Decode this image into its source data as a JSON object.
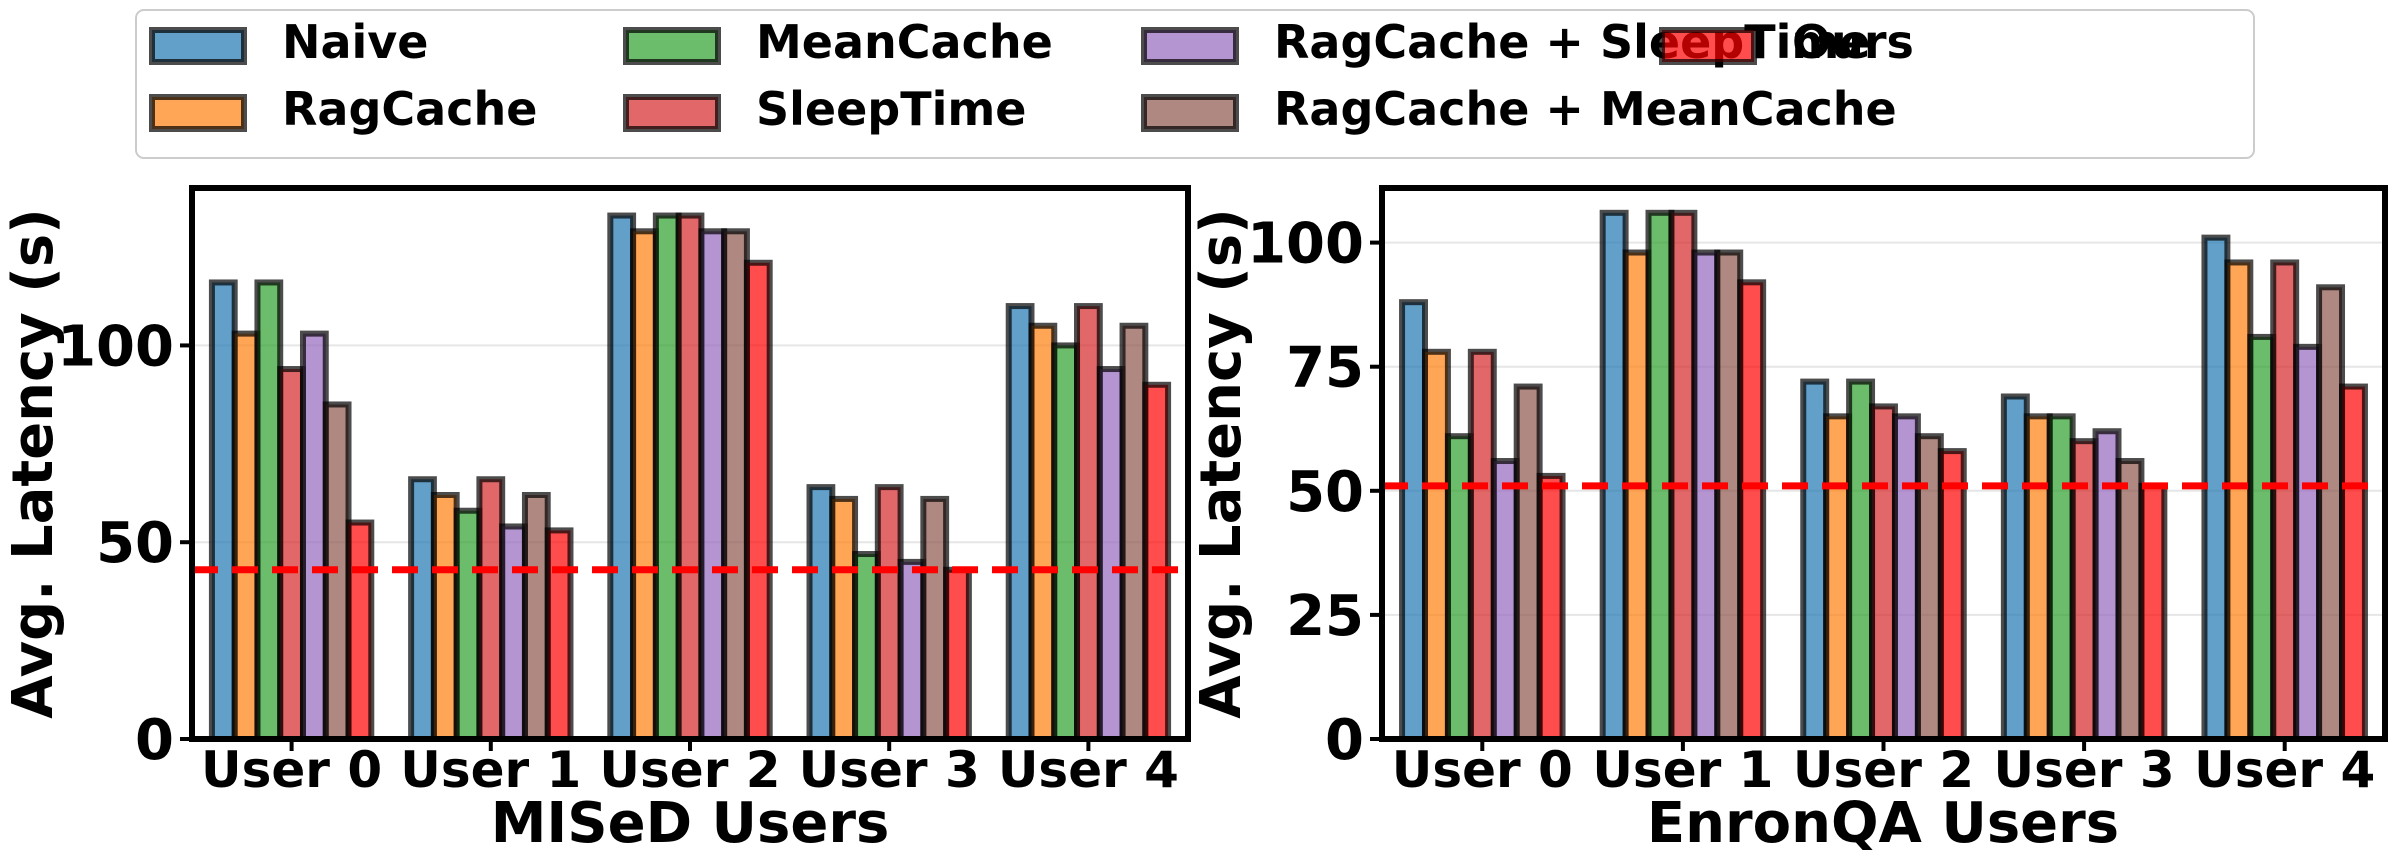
{
  "legend": {
    "entries": [
      {
        "label": "Naive",
        "color": "#1f77b4"
      },
      {
        "label": "RagCache",
        "color": "#ff7f0e"
      },
      {
        "label": "MeanCache",
        "color": "#2ca02c"
      },
      {
        "label": "SleepTime",
        "color": "#d62728"
      },
      {
        "label": "RagCache + SleepTime",
        "color": "#9467bd"
      },
      {
        "label": "RagCache + MeanCache",
        "color": "#8c564b"
      },
      {
        "label": "Ours",
        "color": "#ff0000"
      }
    ],
    "placement": "top-center"
  },
  "chart_data": [
    {
      "type": "bar",
      "title": "",
      "xlabel": "MISeD Users",
      "ylabel": "Avg. Latency (s)",
      "ylim": [
        0,
        140
      ],
      "yticks": [
        0,
        50,
        100
      ],
      "categories": [
        "User 0",
        "User 1",
        "User 2",
        "User 3",
        "User 4"
      ],
      "reference_line": {
        "value": 43,
        "color": "#ff0000",
        "style": "dashed"
      },
      "series": [
        {
          "name": "Naive",
          "values": [
            116,
            66,
            133,
            64,
            110
          ]
        },
        {
          "name": "RagCache",
          "values": [
            103,
            62,
            129,
            61,
            105
          ]
        },
        {
          "name": "MeanCache",
          "values": [
            116,
            58,
            133,
            47,
            100
          ]
        },
        {
          "name": "SleepTime",
          "values": [
            94,
            66,
            133,
            64,
            110
          ]
        },
        {
          "name": "RagCache + SleepTime",
          "values": [
            103,
            54,
            129,
            45,
            94
          ]
        },
        {
          "name": "RagCache + MeanCache",
          "values": [
            85,
            62,
            129,
            61,
            105
          ]
        },
        {
          "name": "Ours",
          "values": [
            55,
            53,
            121,
            43,
            90
          ]
        }
      ]
    },
    {
      "type": "bar",
      "title": "",
      "xlabel": "EnronQA Users",
      "ylabel": "Avg. Latency (s)",
      "ylim": [
        0,
        111
      ],
      "yticks": [
        0,
        25,
        50,
        75,
        100
      ],
      "categories": [
        "User 0",
        "User 1",
        "User 2",
        "User 3",
        "User 4"
      ],
      "reference_line": {
        "value": 51,
        "color": "#ff0000",
        "style": "dashed"
      },
      "series": [
        {
          "name": "Naive",
          "values": [
            88,
            106,
            72,
            69,
            101
          ]
        },
        {
          "name": "RagCache",
          "values": [
            78,
            98,
            65,
            65,
            96
          ]
        },
        {
          "name": "MeanCache",
          "values": [
            61,
            106,
            72,
            65,
            81
          ]
        },
        {
          "name": "SleepTime",
          "values": [
            78,
            106,
            67,
            60,
            96
          ]
        },
        {
          "name": "RagCache + SleepTime",
          "values": [
            56,
            98,
            65,
            62,
            79
          ]
        },
        {
          "name": "RagCache + MeanCache",
          "values": [
            71,
            98,
            61,
            56,
            91
          ]
        },
        {
          "name": "Ours",
          "values": [
            53,
            92,
            58,
            51,
            71
          ]
        }
      ]
    }
  ]
}
